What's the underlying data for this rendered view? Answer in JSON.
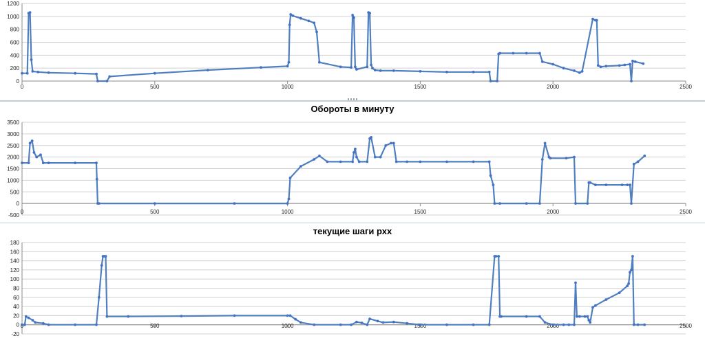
{
  "colors": {
    "series": "#4f7fbf",
    "marker": "#4472c4",
    "grid": "#d0d0d0",
    "axis": "#8a8a8a"
  },
  "chart_data": [
    {
      "type": "line",
      "title": "",
      "xlabel": "",
      "ylabel": "",
      "xlim": [
        0,
        2500
      ],
      "ylim": [
        0,
        1200
      ],
      "yticks": [
        0,
        200,
        400,
        600,
        800,
        1000,
        1200
      ],
      "xticks": [
        0,
        500,
        1000,
        1500,
        2000,
        2500
      ],
      "grid": true,
      "series": [
        {
          "x": [
            0,
            20,
            25,
            30,
            35,
            40,
            60,
            100,
            200,
            280,
            285,
            320,
            330,
            500,
            700,
            900,
            1000,
            1005,
            1008,
            1012,
            1020,
            1050,
            1080,
            1100,
            1110,
            1120,
            1200,
            1240,
            1245,
            1250,
            1255,
            1260,
            1300,
            1305,
            1310,
            1315,
            1320,
            1330,
            1350,
            1400,
            1500,
            1600,
            1700,
            1760,
            1765,
            1790,
            1795,
            1800,
            1850,
            1900,
            1950,
            1960,
            2000,
            2040,
            2080,
            2100,
            2110,
            2150,
            2160,
            2165,
            2170,
            2180,
            2200,
            2250,
            2270,
            2290,
            2295,
            2300,
            2310,
            2340
          ],
          "y": [
            120,
            120,
            1050,
            1060,
            330,
            150,
            140,
            130,
            120,
            110,
            0,
            0,
            70,
            120,
            170,
            210,
            230,
            290,
            870,
            1030,
            1010,
            970,
            930,
            900,
            760,
            290,
            220,
            210,
            1020,
            980,
            220,
            180,
            220,
            1060,
            1050,
            250,
            200,
            170,
            160,
            160,
            150,
            140,
            140,
            140,
            0,
            0,
            420,
            430,
            430,
            430,
            430,
            300,
            260,
            200,
            160,
            130,
            150,
            960,
            940,
            940,
            240,
            220,
            230,
            240,
            250,
            260,
            0,
            310,
            300,
            270
          ]
        }
      ]
    },
    {
      "type": "line",
      "title": "Обороты в минуту",
      "xlabel": "",
      "ylabel": "",
      "xlim": [
        0,
        2500
      ],
      "ylim": [
        -500,
        3500
      ],
      "yticks": [
        -500,
        0,
        500,
        1000,
        1500,
        2000,
        2500,
        3000,
        3500
      ],
      "xticks": [
        0,
        500,
        1000,
        1500,
        2000,
        2500
      ],
      "grid": true,
      "series": [
        {
          "x": [
            0,
            25,
            30,
            38,
            45,
            55,
            70,
            80,
            100,
            200,
            280,
            282,
            285,
            290,
            500,
            800,
            1000,
            1005,
            1010,
            1050,
            1100,
            1120,
            1150,
            1200,
            1245,
            1250,
            1255,
            1260,
            1270,
            1300,
            1310,
            1315,
            1330,
            1350,
            1370,
            1390,
            1400,
            1410,
            1450,
            1500,
            1600,
            1700,
            1760,
            1765,
            1775,
            1780,
            1800,
            1900,
            1950,
            1960,
            1970,
            1985,
            1990,
            2050,
            2080,
            2085,
            2130,
            2135,
            2140,
            2160,
            2200,
            2260,
            2280,
            2290,
            2295,
            2305,
            2320,
            2345
          ],
          "y": [
            1750,
            1750,
            2600,
            2700,
            2200,
            2000,
            2100,
            1750,
            1750,
            1750,
            1750,
            1050,
            0,
            0,
            0,
            0,
            0,
            200,
            1100,
            1600,
            1900,
            2050,
            1800,
            1800,
            1800,
            2200,
            2350,
            2000,
            1800,
            1800,
            2800,
            2850,
            2000,
            2000,
            2500,
            2600,
            2600,
            1800,
            1800,
            1800,
            1800,
            1800,
            1800,
            1200,
            800,
            0,
            0,
            0,
            0,
            1900,
            2600,
            2000,
            1950,
            1950,
            2000,
            0,
            0,
            900,
            900,
            800,
            800,
            800,
            800,
            800,
            0,
            1700,
            1800,
            2050
          ]
        }
      ]
    },
    {
      "type": "line",
      "title": "текущие шаги рхх",
      "xlabel": "",
      "ylabel": "",
      "xlim": [
        0,
        2500
      ],
      "ylim": [
        -20,
        180
      ],
      "yticks": [
        -20,
        0,
        20,
        40,
        60,
        80,
        100,
        120,
        140,
        160,
        180
      ],
      "xticks": [
        0,
        500,
        1000,
        1500,
        2000,
        2500
      ],
      "grid": true,
      "series": [
        {
          "x": [
            0,
            10,
            15,
            25,
            40,
            50,
            80,
            100,
            200,
            280,
            290,
            300,
            305,
            310,
            315,
            320,
            400,
            600,
            800,
            1000,
            1010,
            1030,
            1050,
            1100,
            1200,
            1240,
            1260,
            1280,
            1300,
            1310,
            1340,
            1360,
            1400,
            1450,
            1500,
            1600,
            1700,
            1760,
            1780,
            1785,
            1795,
            1800,
            1805,
            1900,
            1950,
            1970,
            2000,
            2040,
            2060,
            2080,
            2085,
            2090,
            2100,
            2120,
            2130,
            2135,
            2140,
            2150,
            2160,
            2200,
            2250,
            2280,
            2285,
            2290,
            2295,
            2300,
            2305,
            2320,
            2345
          ],
          "y": [
            0,
            0,
            18,
            15,
            10,
            5,
            3,
            0,
            0,
            0,
            60,
            130,
            150,
            150,
            150,
            18,
            18,
            19,
            20,
            20,
            20,
            12,
            5,
            0,
            0,
            0,
            6,
            4,
            0,
            13,
            8,
            5,
            6,
            3,
            0,
            0,
            0,
            0,
            150,
            150,
            150,
            18,
            18,
            18,
            18,
            5,
            0,
            0,
            0,
            0,
            92,
            18,
            18,
            18,
            18,
            10,
            5,
            38,
            42,
            55,
            70,
            85,
            90,
            115,
            120,
            150,
            0,
            0,
            0
          ]
        }
      ]
    }
  ]
}
